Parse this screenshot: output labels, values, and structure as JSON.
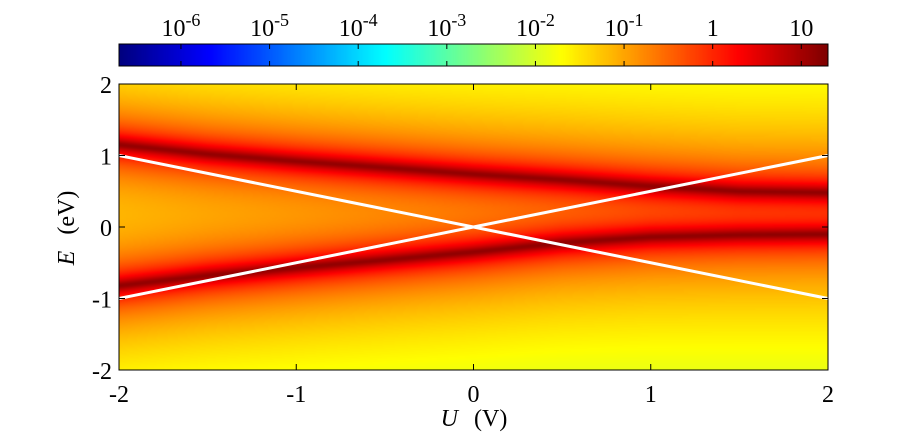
{
  "chart_data": {
    "type": "heatmap",
    "title": "",
    "xlabel": "U  (V)",
    "xlabel_var": "U",
    "xlabel_unit": "(V)",
    "ylabel": "E  (eV)",
    "ylabel_var": "E",
    "ylabel_unit": "(eV)",
    "xlim": [
      -2,
      2
    ],
    "ylim": [
      -2,
      2
    ],
    "x_ticks": [
      {
        "value": -2,
        "label": "-2"
      },
      {
        "value": -1,
        "label": "-1"
      },
      {
        "value": 0,
        "label": "0"
      },
      {
        "value": 1,
        "label": "1"
      },
      {
        "value": 2,
        "label": "2"
      }
    ],
    "y_ticks": [
      {
        "value": -2,
        "label": "-2"
      },
      {
        "value": -1,
        "label": "-1"
      },
      {
        "value": 0,
        "label": "0"
      },
      {
        "value": 1,
        "label": "1"
      },
      {
        "value": 2,
        "label": "2"
      }
    ],
    "colorbar": {
      "scale": "log",
      "range": [
        2e-07,
        20
      ],
      "colormap": "jet",
      "position": "top",
      "ticks": [
        {
          "value": 1e-06,
          "base": "10",
          "exp": "-6"
        },
        {
          "value": 1e-05,
          "base": "10",
          "exp": "-5"
        },
        {
          "value": 0.0001,
          "base": "10",
          "exp": "-4"
        },
        {
          "value": 0.001,
          "base": "10",
          "exp": "-3"
        },
        {
          "value": 0.01,
          "base": "10",
          "exp": "-2"
        },
        {
          "value": 0.1,
          "base": "10",
          "exp": "-1"
        },
        {
          "value": 1,
          "base": "1",
          "exp": ""
        },
        {
          "value": 10,
          "base": "10",
          "exp": ""
        }
      ]
    },
    "bands": {
      "upper": [
        {
          "x": -2.0,
          "y": 1.15
        },
        {
          "x": -1.5,
          "y": 1.02
        },
        {
          "x": -1.0,
          "y": 0.92
        },
        {
          "x": -0.5,
          "y": 0.83
        },
        {
          "x": 0.0,
          "y": 0.74
        },
        {
          "x": 0.5,
          "y": 0.66
        },
        {
          "x": 1.0,
          "y": 0.57
        },
        {
          "x": 1.5,
          "y": 0.5
        },
        {
          "x": 2.0,
          "y": 0.48
        }
      ],
      "lower": [
        {
          "x": -2.0,
          "y": -0.82
        },
        {
          "x": -1.5,
          "y": -0.68
        },
        {
          "x": -1.0,
          "y": -0.57
        },
        {
          "x": -0.5,
          "y": -0.46
        },
        {
          "x": 0.0,
          "y": -0.35
        },
        {
          "x": 0.5,
          "y": -0.22
        },
        {
          "x": 1.0,
          "y": -0.14
        },
        {
          "x": 1.5,
          "y": -0.11
        },
        {
          "x": 2.0,
          "y": -0.1
        }
      ],
      "peak_value": 15,
      "width": 0.05
    },
    "lines": [
      {
        "color": "#ffffff",
        "points": [
          {
            "x": -2,
            "y": 1
          },
          {
            "x": 2,
            "y": -1
          }
        ]
      },
      {
        "color": "#ffffff",
        "points": [
          {
            "x": -2,
            "y": -1
          },
          {
            "x": 2,
            "y": 1
          }
        ]
      }
    ]
  }
}
